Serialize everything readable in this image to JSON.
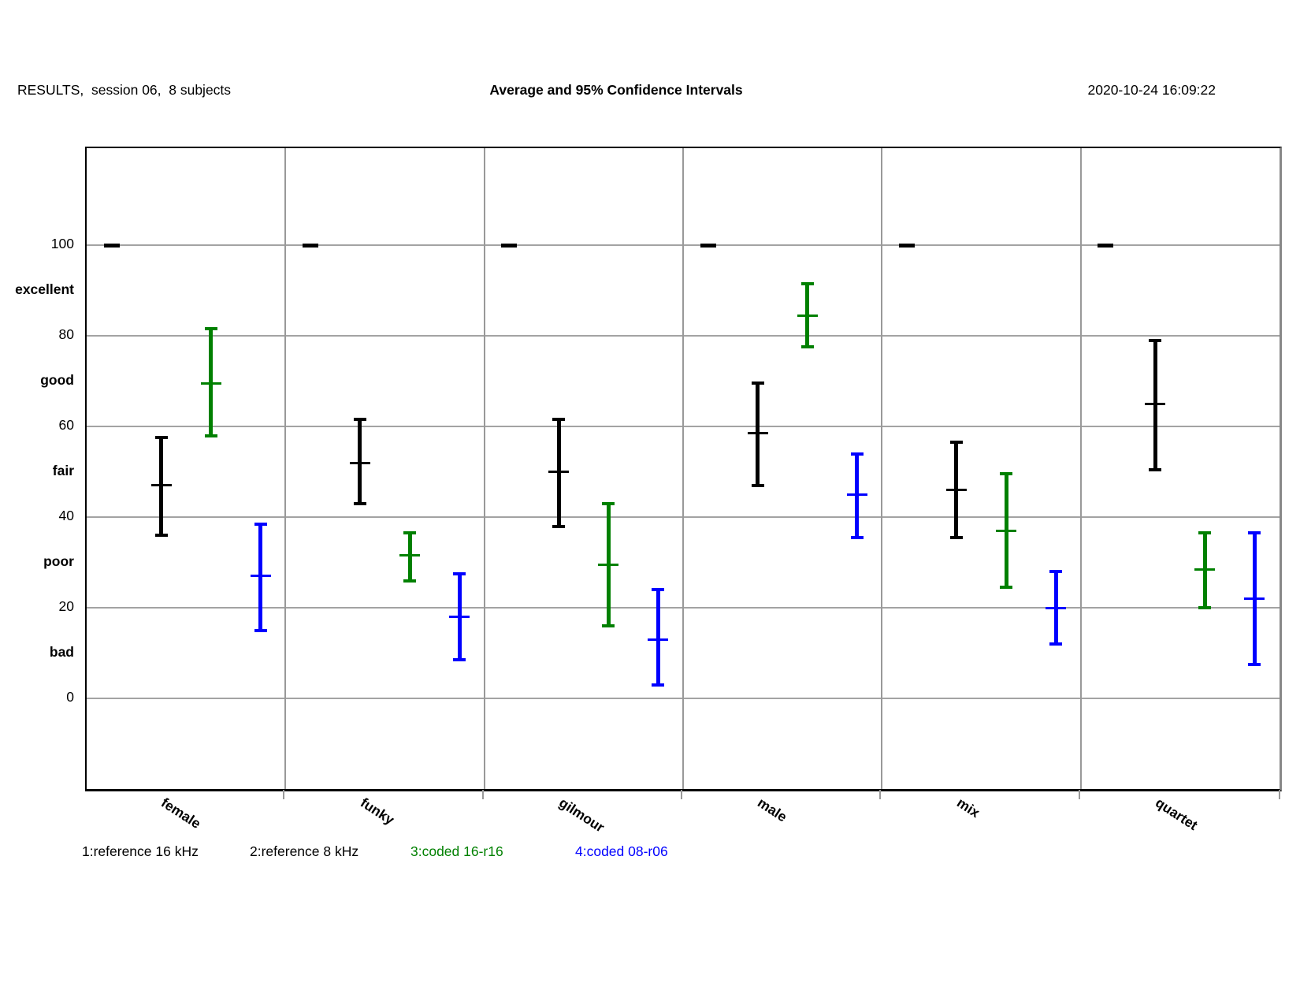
{
  "header": {
    "left": "RESULTS,  session 06,  8 subjects",
    "title": "Average and 95% Confidence Intervals",
    "right": "2020-10-24 16:09:22"
  },
  "chart_data": {
    "type": "errorbar",
    "title": "Average and 95% Confidence Intervals",
    "subtitle": "",
    "categories": [
      "female",
      "funky",
      "gilmour",
      "male",
      "mix",
      "quartet"
    ],
    "series": [
      {
        "name": "1:reference 16 kHz",
        "color": "#000000",
        "style": "dash",
        "points": [
          {
            "low": 100,
            "mean": 100,
            "high": 100
          },
          {
            "low": 100,
            "mean": 100,
            "high": 100
          },
          {
            "low": 100,
            "mean": 100,
            "high": 100
          },
          {
            "low": 100,
            "mean": 100,
            "high": 100
          },
          {
            "low": 100,
            "mean": 100,
            "high": 100
          },
          {
            "low": 100,
            "mean": 100,
            "high": 100
          }
        ]
      },
      {
        "name": "2:reference 8 kHz",
        "color": "#000000",
        "style": "errorbar",
        "points": [
          {
            "low": 36,
            "mean": 47,
            "high": 57.5
          },
          {
            "low": 43,
            "mean": 52,
            "high": 61.5
          },
          {
            "low": 38,
            "mean": 50,
            "high": 61.5
          },
          {
            "low": 47,
            "mean": 58.5,
            "high": 69.5
          },
          {
            "low": 35.5,
            "mean": 46,
            "high": 56.5
          },
          {
            "low": 50.5,
            "mean": 65,
            "high": 79
          }
        ]
      },
      {
        "name": "3:coded 16-r16",
        "color": "#008000",
        "style": "errorbar",
        "points": [
          {
            "low": 58,
            "mean": 69.5,
            "high": 81.5
          },
          {
            "low": 26,
            "mean": 31.5,
            "high": 36.5
          },
          {
            "low": 16,
            "mean": 29.5,
            "high": 43
          },
          {
            "low": 77.5,
            "mean": 84.5,
            "high": 91.5
          },
          {
            "low": 24.5,
            "mean": 37,
            "high": 49.5
          },
          {
            "low": 20,
            "mean": 28.5,
            "high": 36.5
          }
        ]
      },
      {
        "name": "4:coded 08-r06",
        "color": "#0000ff",
        "style": "errorbar",
        "points": [
          {
            "low": 15,
            "mean": 27,
            "high": 38.5
          },
          {
            "low": 8.5,
            "mean": 18,
            "high": 27.5
          },
          {
            "low": 3,
            "mean": 13,
            "high": 24
          },
          {
            "low": 35.5,
            "mean": 45,
            "high": 54
          },
          {
            "low": 12,
            "mean": 20,
            "high": 28
          },
          {
            "low": 7.5,
            "mean": 22,
            "high": 36.5
          }
        ]
      }
    ],
    "y_ticks": [
      0,
      20,
      40,
      60,
      80,
      100
    ],
    "y_scale_labels": [
      {
        "label": "excellent",
        "value": 90
      },
      {
        "label": "good",
        "value": 70
      },
      {
        "label": "fair",
        "value": 50
      },
      {
        "label": "poor",
        "value": 30
      },
      {
        "label": "bad",
        "value": 10
      }
    ],
    "ylim": [
      -20,
      121.4
    ],
    "grid": true,
    "legend_position": "bottom"
  }
}
